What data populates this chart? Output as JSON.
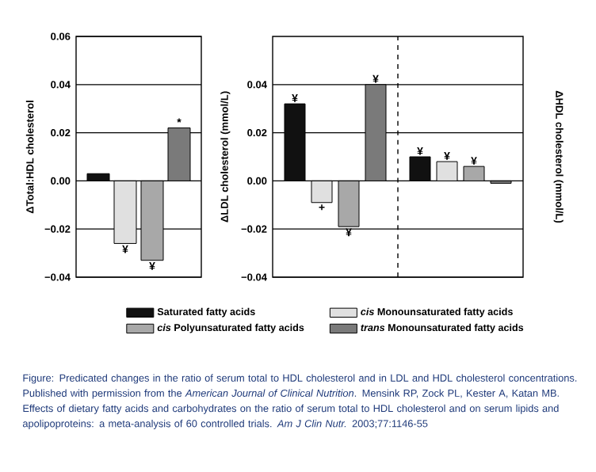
{
  "chart_data": [
    {
      "type": "bar",
      "ylabel": "ΔTotal:HDL cholesterol",
      "categories": [
        null
      ],
      "ylim": [
        -0.04,
        0.06
      ],
      "yticks": [
        {
          "value": -0.04,
          "label": "−0.04"
        },
        {
          "value": -0.02,
          "label": "−0.02"
        },
        {
          "value": 0,
          "label": "0.00"
        },
        {
          "value": 0.02,
          "label": "0.02"
        },
        {
          "value": 0.04,
          "label": "0.04"
        },
        {
          "value": 0.06,
          "label": "0.06"
        }
      ],
      "grid": "y",
      "tick_labels": "y",
      "legend": "bottom",
      "series": [
        {
          "name": "Saturated fatty acids",
          "color": "#111111",
          "values": [
            0.003
          ],
          "value_labels": [
            null
          ]
        },
        {
          "name": "*cis* Monounsaturated fatty acids",
          "color": "#e0e0e0",
          "values": [
            -0.026
          ],
          "value_labels": [
            "¥"
          ]
        },
        {
          "name": "*cis* Polyunsaturated fatty acids",
          "color": "#a8a8a8",
          "values": [
            -0.033
          ],
          "value_labels": [
            "¥"
          ]
        },
        {
          "name": "*trans* Monounsaturated fatty acids",
          "color": "#7a7a7a",
          "values": [
            0.022
          ],
          "value_labels": [
            "*"
          ]
        }
      ]
    },
    {
      "type": "bar",
      "ylabel": "ΔLDL cholesterol (mmol/L)",
      "y2label": "ΔHDL cholesterol (mmol/L)",
      "categories": [
        null,
        null
      ],
      "ylim": [
        -0.04,
        0.06
      ],
      "yticks": [
        {
          "value": -0.04,
          "label": "−0.04"
        },
        {
          "value": -0.02,
          "label": "−0.02"
        },
        {
          "value": 0,
          "label": "0.00"
        },
        {
          "value": 0.02,
          "label": "0.02"
        },
        {
          "value": 0.04,
          "label": "0.04"
        }
      ],
      "grid": "y",
      "tick_labels": "y",
      "series": [
        {
          "color": "#111111",
          "values": [
            0.032,
            0.01
          ],
          "value_labels": [
            "¥",
            "¥"
          ]
        },
        {
          "color": "#e0e0e0",
          "values": [
            -0.009,
            0.008
          ],
          "value_labels": [
            "+",
            "¥"
          ]
        },
        {
          "color": "#a8a8a8",
          "values": [
            -0.019,
            0.006
          ],
          "value_labels": [
            "¥",
            "¥"
          ]
        },
        {
          "color": "#7a7a7a",
          "values": [
            0.04,
            -0.001
          ],
          "value_labels": [
            "¥",
            null
          ]
        }
      ],
      "annotations": [
        "Figure: Predicated changes in the ratio of serum total to HDL cholesterol and in LDL and HDL cholesterol concentrations. Published with permission from the *American Journal of Clinical Nutrition*. Mensink RP, Zock PL, Kester A, Katan MB. Effects of dietary fatty acids and carbohydrates on the ratio of serum total to HDL cholesterol and on serum lipids and apolipoproteins: a meta-analysis of 60 controlled trials. *Am J Clin Nutr.* 2003;77:1146-55"
      ]
    }
  ]
}
